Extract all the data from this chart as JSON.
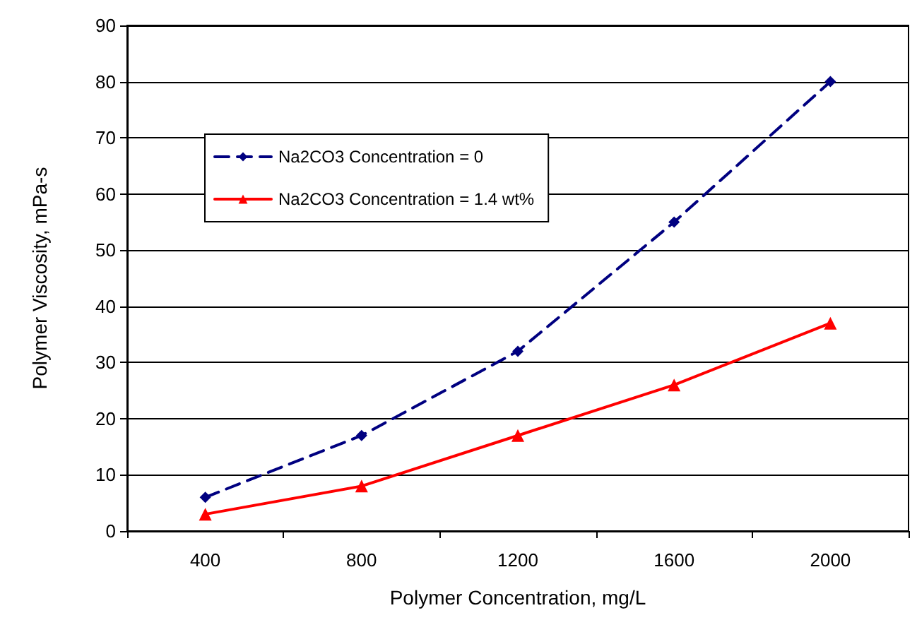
{
  "chart_data": {
    "type": "line",
    "xlabel": "Polymer Concentration, mg/L",
    "ylabel": "Polymer Viscosity, mPa-s",
    "categories": [
      "400",
      "800",
      "1200",
      "1600",
      "2000"
    ],
    "series": [
      {
        "name": "Na2CO3 Concentration = 0",
        "color": "#000080",
        "values": [
          6,
          17,
          32,
          55,
          80
        ],
        "marker": "diamond",
        "line_style": "dashed"
      },
      {
        "name": "Na2CO3 Concentration = 1.4 wt%",
        "color": "#ff0000",
        "values": [
          3,
          8,
          17,
          26,
          37
        ],
        "marker": "triangle",
        "line_style": "solid"
      }
    ],
    "ylim": [
      0,
      90
    ],
    "yticks": [
      0,
      10,
      20,
      30,
      40,
      50,
      60,
      70,
      80,
      90
    ],
    "grid": "y",
    "legend": "top left"
  }
}
